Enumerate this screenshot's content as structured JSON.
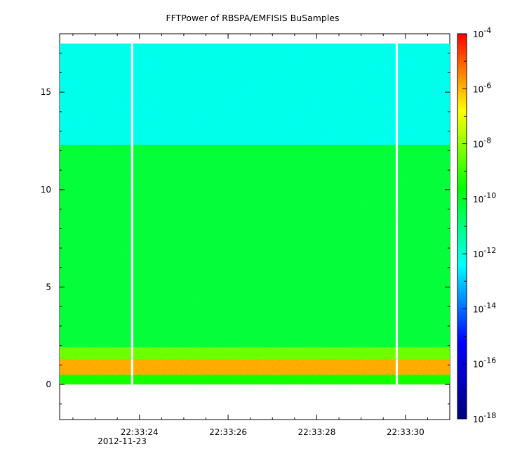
{
  "chart_data": {
    "type": "heatmap",
    "title": "FFTPower of RBSPA/EMFISIS  BuSamples",
    "xlabel": "",
    "ylabel": "",
    "x_ticks": [
      "22:33:24",
      "22:33:26",
      "22:33:28",
      "22:33:30"
    ],
    "x_date_label": "2012-11-23",
    "xlim": [
      "22:33:22.2",
      "22:33:31.0"
    ],
    "ylim": [
      -1.8,
      18.0
    ],
    "y_ticks": [
      0,
      5,
      10,
      15
    ],
    "data_extent_y": [
      0,
      17.5
    ],
    "gaps": [
      {
        "start": "22:33:23.81",
        "end": "22:33:23.86"
      },
      {
        "start": "22:33:29.78",
        "end": "22:33:29.83"
      }
    ],
    "colorbar": {
      "scale": "log",
      "range": [
        "1e-18",
        "1e-4"
      ],
      "tick_bases": [
        "10",
        "10",
        "10",
        "10",
        "10",
        "10",
        "10",
        "10"
      ],
      "tick_exponents": [
        "-4",
        "-6",
        "-8",
        "-10",
        "-12",
        "-14",
        "-16",
        "-18"
      ],
      "colormap": [
        "#000080",
        "#0000ff",
        "#00ffff",
        "#00ff00",
        "#ffff00",
        "#ff0000"
      ]
    },
    "bands": [
      {
        "ymin": 12.3,
        "ymax": 17.5,
        "log10_power": -12.3,
        "description_color": "#00f080"
      },
      {
        "ymin": 1.9,
        "ymax": 12.3,
        "log10_power": -10.3,
        "description_color": "#44ee22"
      },
      {
        "ymin": 1.3,
        "ymax": 1.9,
        "log10_power": -8.5,
        "description_color": "#ccdd00"
      },
      {
        "ymin": 0.5,
        "ymax": 1.3,
        "log10_power": -6.0,
        "description_color": "#ee4400"
      },
      {
        "ymin": 0.0,
        "ymax": 0.5,
        "log10_power": -9.5,
        "description_color": "#99ee00"
      }
    ]
  }
}
